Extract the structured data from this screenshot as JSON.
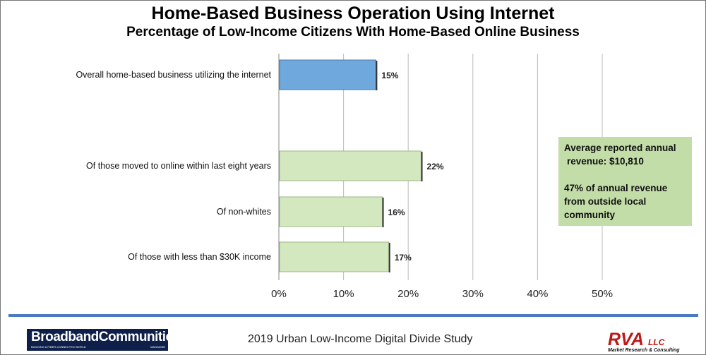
{
  "chart_data": {
    "type": "bar",
    "orientation": "horizontal",
    "title": "Home-Based Business Operation Using Internet",
    "subtitle": "Percentage of Low-Income Citizens With Home-Based Online Business",
    "categories": [
      "Overall home-based business utilizing the internet",
      "Of those moved to online within last eight years",
      "Of non-whites",
      "Of those with less than $30K income"
    ],
    "values": [
      15,
      22,
      16,
      17
    ],
    "data_labels": [
      "15%",
      "22%",
      "16%",
      "17%"
    ],
    "bar_colors": [
      "#6fa8dc",
      "#d4e8bf",
      "#d4e8bf",
      "#d4e8bf"
    ],
    "xlim": [
      0,
      50
    ],
    "x_ticks": [
      0,
      10,
      20,
      30,
      40,
      50
    ],
    "x_tick_labels": [
      "0%",
      "10%",
      "20%",
      "30%",
      "40%",
      "50%"
    ],
    "grid": true,
    "xlabel": "",
    "ylabel": ""
  },
  "note": {
    "line1": "Average reported annual",
    "line2": "revenue: $10,810",
    "line3": "47% of annual revenue",
    "line4": "from outside local",
    "line5": "community"
  },
  "footer": {
    "study": "2019 Urban Low-Income Digital Divide Study",
    "logo_main": "BroadbandCommunities",
    "logo_tagline": "BUILDING A FIBER-CONNECTED WORLD",
    "logo_magazine": "MAGAZINE",
    "rva": "RVA",
    "rva_llc": "LLC",
    "rva_tagline": "Market Research & Consulting"
  }
}
